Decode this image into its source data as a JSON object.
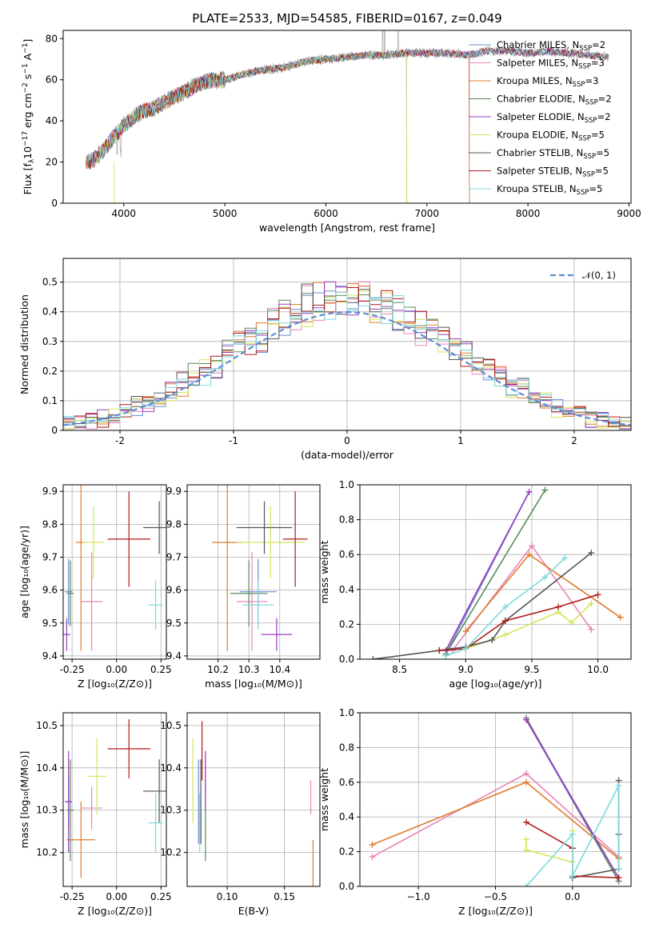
{
  "figure": {
    "title": "PLATE=2533, MJD=54585, FIBERID=0167, z=0.049"
  },
  "colors": {
    "Chabrier MILES": "#6a8fd4",
    "Salpeter MILES": "#e985b9",
    "Kroupa MILES": "#e07b2a",
    "Chabrier ELODIE": "#5b8a5b",
    "Salpeter ELODIE": "#9b3bbf",
    "Kroupa ELODIE": "#d4e65a",
    "Chabrier STELIB": "#555555",
    "Salpeter STELIB": "#b01818",
    "Kroupa STELIB": "#7ed9dc"
  },
  "legend": [
    {
      "label": "Chabrier MILES, N",
      "sub": "SSP",
      "tail": "=2",
      "key": "Chabrier MILES"
    },
    {
      "label": "Salpeter MILES, N",
      "sub": "SSP",
      "tail": "=3",
      "key": "Salpeter MILES"
    },
    {
      "label": "Kroupa MILES, N",
      "sub": "SSP",
      "tail": "=3",
      "key": "Kroupa MILES"
    },
    {
      "label": "Chabrier ELODIE, N",
      "sub": "SSP",
      "tail": "=2",
      "key": "Chabrier ELODIE"
    },
    {
      "label": "Salpeter ELODIE, N",
      "sub": "SSP",
      "tail": "=2",
      "key": "Salpeter ELODIE"
    },
    {
      "label": "Kroupa ELODIE, N",
      "sub": "SSP",
      "tail": "=5",
      "key": "Kroupa ELODIE"
    },
    {
      "label": "Chabrier STELIB, N",
      "sub": "SSP",
      "tail": "=5",
      "key": "Chabrier STELIB"
    },
    {
      "label": "Salpeter STELIB, N",
      "sub": "SSP",
      "tail": "=5",
      "key": "Salpeter STELIB"
    },
    {
      "label": "Kroupa STELIB, N",
      "sub": "SSP",
      "tail": "=5",
      "key": "Kroupa STELIB"
    }
  ],
  "chart_data": [
    {
      "id": "spectrum",
      "type": "line",
      "xlabel": "wavelength [Angstrom, rest frame]",
      "ylabel": "Flux [f",
      "ylabel_suffix": "10",
      "ylabel_exp": "−17",
      "ylabel_units": " erg cm",
      "xlim": [
        3400,
        9020
      ],
      "ylim": [
        0,
        84
      ],
      "xticks": [
        4000,
        5000,
        6000,
        7000,
        8000,
        9000
      ],
      "yticks": [
        0,
        20,
        40,
        60,
        80
      ],
      "continuum_x": [
        3620,
        3700,
        3800,
        3900,
        4000,
        4100,
        4200,
        4300,
        4400,
        4500,
        4600,
        4700,
        4800,
        4900,
        5000,
        5200,
        5400,
        5600,
        5800,
        6000,
        6200,
        6400,
        6600,
        6800,
        7000,
        7200,
        7400,
        7600,
        7800,
        8000,
        8200,
        8400,
        8600,
        8800
      ],
      "continuum_y": [
        20,
        21,
        26,
        32,
        38,
        42,
        45,
        46,
        49,
        52,
        54,
        57,
        59,
        60,
        60,
        63,
        65,
        66,
        69,
        70,
        71,
        72,
        72,
        73,
        73,
        73,
        72,
        74,
        74,
        73,
        74,
        73,
        72,
        71
      ],
      "model_end": {
        "Chabrier MILES": 7420,
        "Salpeter MILES": 7420,
        "Kroupa MILES": 7420,
        "Kroupa ELODIE": 6800,
        "Chabrier ELODIE": 6800
      }
    },
    {
      "id": "residuals",
      "type": "histogram",
      "xlabel": "(data-model)/error",
      "ylabel": "Normed distribution",
      "xlim": [
        -2.5,
        2.5
      ],
      "ylim": [
        0,
        0.58
      ],
      "xticks": [
        -2,
        -1,
        0,
        1,
        2
      ],
      "yticks": [
        0.0,
        0.1,
        0.2,
        0.3,
        0.4,
        0.5
      ],
      "reference_label": "N(0,1)",
      "reference": "gaussian",
      "bin_width": 0.1
    },
    {
      "id": "age_vs_Z",
      "type": "errorbar",
      "xlabel": "Z [log10(Z/Z⊙)]",
      "ylabel": "age  [log10(age/yr)]",
      "xlim": [
        -0.3,
        0.28
      ],
      "ylim": [
        9.39,
        9.92
      ],
      "xticks": [
        -0.25,
        0.0,
        0.25
      ],
      "yticks": [
        9.4,
        9.5,
        9.6,
        9.7,
        9.8,
        9.9
      ],
      "points": [
        {
          "key": "Chabrier MILES",
          "x": -0.27,
          "y": 9.595,
          "xerr": 0.02,
          "yerr": 0.1
        },
        {
          "key": "Salpeter MILES",
          "x": -0.14,
          "y": 9.565,
          "xerr": 0.06,
          "yerr": 0.15
        },
        {
          "key": "Kroupa MILES",
          "x": -0.2,
          "y": 9.745,
          "xerr": 0.03,
          "yerr": 0.33
        },
        {
          "key": "Chabrier ELODIE",
          "x": -0.26,
          "y": 9.59,
          "xerr": 0.02,
          "yerr": 0.1
        },
        {
          "key": "Salpeter ELODIE",
          "x": -0.28,
          "y": 9.465,
          "xerr": 0.02,
          "yerr": 0.05
        },
        {
          "key": "Kroupa ELODIE",
          "x": -0.13,
          "y": 9.745,
          "xerr": 0.06,
          "yerr": 0.11
        },
        {
          "key": "Chabrier STELIB",
          "x": 0.24,
          "y": 9.79,
          "xerr": 0.09,
          "yerr": 0.08
        },
        {
          "key": "Salpeter STELIB",
          "x": 0.07,
          "y": 9.755,
          "xerr": 0.12,
          "yerr": 0.145
        },
        {
          "key": "Kroupa STELIB",
          "x": 0.22,
          "y": 9.555,
          "xerr": 0.04,
          "yerr": 0.075
        }
      ]
    },
    {
      "id": "age_vs_mass",
      "type": "errorbar",
      "xlabel": "mass [log10(M/M⊙)]",
      "ylabel": "",
      "xlim": [
        10.1,
        10.53
      ],
      "ylim": [
        9.39,
        9.92
      ],
      "xticks": [
        10.2,
        10.3,
        10.4
      ],
      "yticks": [
        9.4,
        9.5,
        9.6,
        9.7,
        9.8,
        9.9
      ],
      "points": [
        {
          "key": "Chabrier MILES",
          "x": 10.33,
          "y": 9.595,
          "xerr": 0.06,
          "yerr": 0.1
        },
        {
          "key": "Salpeter MILES",
          "x": 10.31,
          "y": 9.565,
          "xerr": 0.05,
          "yerr": 0.15
        },
        {
          "key": "Kroupa MILES",
          "x": 10.23,
          "y": 9.745,
          "xerr": 0.05,
          "yerr": 0.33
        },
        {
          "key": "Chabrier ELODIE",
          "x": 10.3,
          "y": 9.59,
          "xerr": 0.06,
          "yerr": 0.1
        },
        {
          "key": "Salpeter ELODIE",
          "x": 10.39,
          "y": 9.465,
          "xerr": 0.05,
          "yerr": 0.05
        },
        {
          "key": "Kroupa ELODIE",
          "x": 10.37,
          "y": 9.745,
          "xerr": 0.11,
          "yerr": 0.11
        },
        {
          "key": "Chabrier STELIB",
          "x": 10.35,
          "y": 9.79,
          "xerr": 0.09,
          "yerr": 0.08
        },
        {
          "key": "Salpeter STELIB",
          "x": 10.45,
          "y": 9.755,
          "xerr": 0.04,
          "yerr": 0.145
        },
        {
          "key": "Kroupa STELIB",
          "x": 10.33,
          "y": 9.555,
          "xerr": 0.05,
          "yerr": 0.075
        }
      ]
    },
    {
      "id": "weight_vs_age",
      "type": "line",
      "xlabel": "age  [log10(age/yr)]",
      "ylabel": "mass weight",
      "xlim": [
        8.2,
        10.25
      ],
      "ylim": [
        0,
        1.0
      ],
      "xticks": [
        8.5,
        9.0,
        9.5,
        10.0
      ],
      "yticks": [
        0.0,
        0.2,
        0.4,
        0.6,
        0.8,
        1.0
      ],
      "series": [
        {
          "key": "Chabrier MILES",
          "x": [
            8.85,
            9.48
          ],
          "y": [
            0.03,
            0.96
          ]
        },
        {
          "key": "Salpeter MILES",
          "x": [
            8.9,
            9.5,
            9.95
          ],
          "y": [
            0.05,
            0.65,
            0.17
          ]
        },
        {
          "key": "Kroupa MILES",
          "x": [
            9.0,
            9.48,
            10.17
          ],
          "y": [
            0.16,
            0.6,
            0.24
          ]
        },
        {
          "key": "Chabrier ELODIE",
          "x": [
            8.85,
            9.6
          ],
          "y": [
            0.03,
            0.97
          ]
        },
        {
          "key": "Salpeter ELODIE",
          "x": [
            8.85,
            9.48
          ],
          "y": [
            0.05,
            0.96
          ]
        },
        {
          "key": "Kroupa ELODIE",
          "x": [
            9.0,
            9.3,
            9.7,
            9.8,
            9.95
          ],
          "y": [
            0.06,
            0.14,
            0.27,
            0.21,
            0.32
          ]
        },
        {
          "key": "Chabrier STELIB",
          "x": [
            8.3,
            8.8,
            9.0,
            9.2,
            9.3,
            9.95
          ],
          "y": [
            0.0,
            0.05,
            0.07,
            0.11,
            0.22,
            0.61
          ]
        },
        {
          "key": "Salpeter STELIB",
          "x": [
            8.8,
            9.0,
            9.3,
            9.7,
            10.0
          ],
          "y": [
            0.05,
            0.06,
            0.22,
            0.3,
            0.37
          ]
        },
        {
          "key": "Kroupa STELIB",
          "x": [
            8.85,
            9.0,
            9.3,
            9.6,
            9.75
          ],
          "y": [
            0.02,
            0.06,
            0.3,
            0.47,
            0.58
          ]
        }
      ]
    },
    {
      "id": "mass_vs_Z",
      "type": "errorbar",
      "xlabel": "Z [log10(Z/Z⊙)]",
      "ylabel": "mass [log10(M/M⊙)]",
      "xlim": [
        -0.3,
        0.28
      ],
      "ylim": [
        10.12,
        10.53
      ],
      "xticks": [
        -0.25,
        0.0,
        0.25
      ],
      "yticks": [
        10.2,
        10.3,
        10.4,
        10.5
      ],
      "points": [
        {
          "key": "Chabrier MILES",
          "x": -0.27,
          "y": 10.32,
          "xerr": 0.02,
          "yerr": 0.06
        },
        {
          "key": "Salpeter MILES",
          "x": -0.14,
          "y": 10.305,
          "xerr": 0.06,
          "yerr": 0.05
        },
        {
          "key": "Kroupa MILES",
          "x": -0.2,
          "y": 10.23,
          "xerr": 0.08,
          "yerr": 0.09
        },
        {
          "key": "Chabrier ELODIE",
          "x": -0.26,
          "y": 10.3,
          "xerr": 0.02,
          "yerr": 0.12
        },
        {
          "key": "Salpeter ELODIE",
          "x": -0.27,
          "y": 10.32,
          "xerr": 0.02,
          "yerr": 0.12
        },
        {
          "key": "Kroupa ELODIE",
          "x": -0.11,
          "y": 10.38,
          "xerr": 0.05,
          "yerr": 0.09
        },
        {
          "key": "Chabrier STELIB",
          "x": 0.24,
          "y": 10.345,
          "xerr": 0.09,
          "yerr": 0.075
        },
        {
          "key": "Salpeter STELIB",
          "x": 0.07,
          "y": 10.445,
          "xerr": 0.12,
          "yerr": 0.07
        },
        {
          "key": "Kroupa STELIB",
          "x": 0.22,
          "y": 10.27,
          "xerr": 0.04,
          "yerr": 0.07
        }
      ]
    },
    {
      "id": "mass_vs_ebv",
      "type": "errorbar",
      "xlabel": "E(B-V)",
      "ylabel": "",
      "xlim": [
        0.065,
        0.181
      ],
      "ylim": [
        10.12,
        10.53
      ],
      "xticks": [
        0.1,
        0.15
      ],
      "yticks": [
        10.2,
        10.3,
        10.4,
        10.5
      ],
      "points": [
        {
          "key": "Kroupa ELODIE",
          "x": 0.07,
          "y": 10.37,
          "xerr": 0,
          "yerr": 0.1
        },
        {
          "key": "Chabrier MILES",
          "x": 0.075,
          "y": 10.32,
          "xerr": 0,
          "yerr": 0.1
        },
        {
          "key": "Salpeter STELIB",
          "x": 0.078,
          "y": 10.44,
          "xerr": 0,
          "yerr": 0.07
        },
        {
          "key": "Kroupa STELIB",
          "x": 0.076,
          "y": 10.27,
          "xerr": 0,
          "yerr": 0.07
        },
        {
          "key": "Chabrier STELIB",
          "x": 0.077,
          "y": 10.32,
          "xerr": 0,
          "yerr": 0.1
        },
        {
          "key": "Chabrier ELODIE",
          "x": 0.081,
          "y": 10.3,
          "xerr": 0,
          "yerr": 0.12
        },
        {
          "key": "Salpeter ELODIE",
          "x": 0.081,
          "y": 10.37,
          "xerr": 0,
          "yerr": 0.07
        },
        {
          "key": "Salpeter MILES",
          "x": 0.173,
          "y": 10.33,
          "xerr": 0,
          "yerr": 0.04
        },
        {
          "key": "Kroupa MILES",
          "x": 0.175,
          "y": 10.17,
          "xerr": 0,
          "yerr": 0.06
        }
      ]
    },
    {
      "id": "weight_vs_Z",
      "type": "line",
      "xlabel": "Z [log10(Z/Z⊙)]",
      "ylabel": "mass weight",
      "xlim": [
        -1.38,
        0.38
      ],
      "ylim": [
        0,
        1.0
      ],
      "xticks": [
        -1.0,
        -0.5,
        0.0
      ],
      "yticks": [
        0.0,
        0.2,
        0.4,
        0.6,
        0.8,
        1.0
      ],
      "series": [
        {
          "key": "Chabrier MILES",
          "x": [
            -0.3,
            0.3
          ],
          "y": [
            0.96,
            0.03
          ]
        },
        {
          "key": "Salpeter MILES",
          "x": [
            -1.3,
            -0.3,
            0.3
          ],
          "y": [
            0.17,
            0.65,
            0.17
          ]
        },
        {
          "key": "Kroupa MILES",
          "x": [
            -1.3,
            -0.3,
            0.3
          ],
          "y": [
            0.24,
            0.6,
            0.16
          ]
        },
        {
          "key": "Chabrier ELODIE",
          "x": [
            -0.3,
            0.3
          ],
          "y": [
            0.97,
            0.03
          ]
        },
        {
          "key": "Salpeter ELODIE",
          "x": [
            -0.3,
            0.3
          ],
          "y": [
            0.96,
            0.05
          ]
        },
        {
          "key": "Kroupa ELODIE",
          "x": [
            -0.3,
            -0.3,
            0.0,
            0.0
          ],
          "y": [
            0.27,
            0.21,
            0.14,
            0.32
          ]
        },
        {
          "key": "Chabrier STELIB",
          "x": [
            0.3,
            0.3,
            0.3,
            0.0,
            0.0
          ],
          "y": [
            0.61,
            0.3,
            0.1,
            0.05,
            0.22
          ]
        },
        {
          "key": "Salpeter STELIB",
          "x": [
            -0.3,
            0.0,
            0.0,
            0.3
          ],
          "y": [
            0.37,
            0.22,
            0.06,
            0.05
          ]
        },
        {
          "key": "Kroupa STELIB",
          "x": [
            -0.3,
            0.0,
            0.0,
            0.3,
            0.3
          ],
          "y": [
            0.0,
            0.3,
            0.06,
            0.58,
            0.1
          ]
        }
      ]
    }
  ]
}
